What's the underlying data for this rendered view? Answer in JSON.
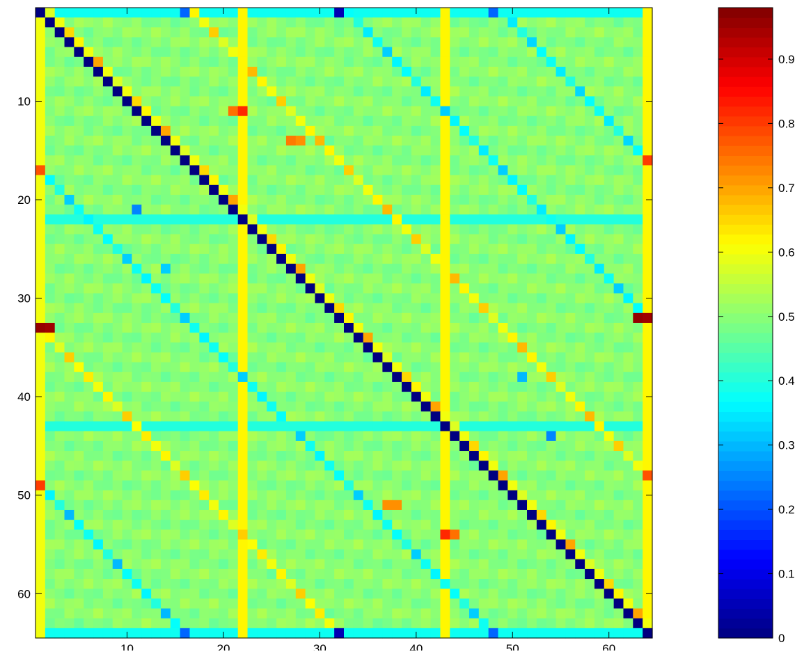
{
  "chart_data": {
    "type": "heatmap",
    "title": "",
    "xlabel": "",
    "ylabel": "",
    "rows": 64,
    "cols": 64,
    "xlim": [
      0.5,
      64.5
    ],
    "ylim": [
      0.5,
      64.5
    ],
    "x_ticks": [
      10,
      20,
      30,
      40,
      50,
      60
    ],
    "y_ticks": [
      10,
      20,
      30,
      40,
      50,
      60
    ],
    "colormap": "jet",
    "color_limits": [
      0,
      0.98
    ],
    "colorbar": {
      "ticks": [
        0,
        0.1,
        0.2,
        0.3,
        0.4,
        0.5,
        0.6,
        0.7,
        0.8,
        0.9
      ],
      "tick_labels": [
        "0",
        "0.1",
        "0.2",
        "0.3",
        "0.4",
        "0.5",
        "0.6",
        "0.7",
        "0.8",
        "0.9"
      ],
      "placement": "right"
    },
    "structure": {
      "baseline_value": 0.5,
      "diagonal_value": 0.0,
      "step_diagonals": [
        {
          "offset": 1,
          "values": [
            0.58,
            0.6,
            0.65,
            0.62,
            0.6,
            0.7,
            0.6
          ]
        },
        {
          "offset": 16,
          "values": [
            0.62,
            0.6,
            0.66,
            0.58,
            0.6,
            0.62,
            0.68
          ]
        },
        {
          "offset": -16,
          "values": [
            0.38,
            0.37,
            0.4,
            0.32,
            0.38,
            0.36
          ]
        },
        {
          "offset": 32,
          "values": [
            0.37,
            0.4,
            0.35,
            0.38,
            0.32,
            0.36
          ]
        },
        {
          "offset": -32,
          "values": [
            0.6,
            0.62,
            0.58,
            0.66,
            0.61,
            0.63
          ]
        },
        {
          "offset": 48,
          "values": [
            0.38,
            0.35,
            0.4,
            0.33,
            0.37
          ]
        },
        {
          "offset": -48,
          "values": [
            0.38,
            0.36,
            0.4,
            0.3,
            0.37
          ]
        }
      ],
      "light_rows": [
        {
          "index": 1,
          "value": 0.38
        },
        {
          "index": 22,
          "value": 0.4
        },
        {
          "index": 43,
          "value": 0.4
        },
        {
          "index": 64,
          "value": 0.38
        }
      ],
      "light_columns": [
        {
          "index": 1,
          "value": 0.6
        },
        {
          "index": 22,
          "value": 0.62
        },
        {
          "index": 43,
          "value": 0.62
        },
        {
          "index": 64,
          "value": 0.62
        }
      ],
      "highlights": [
        {
          "row": 33,
          "col": 1,
          "value": 0.96
        },
        {
          "row": 33,
          "col": 2,
          "value": 0.95
        },
        {
          "row": 32,
          "col": 63,
          "value": 0.96
        },
        {
          "row": 32,
          "col": 64,
          "value": 0.95
        },
        {
          "row": 11,
          "col": 22,
          "value": 0.82
        },
        {
          "row": 11,
          "col": 21,
          "value": 0.75
        },
        {
          "row": 54,
          "col": 43,
          "value": 0.82
        },
        {
          "row": 54,
          "col": 44,
          "value": 0.75
        },
        {
          "row": 17,
          "col": 1,
          "value": 0.78
        },
        {
          "row": 16,
          "col": 64,
          "value": 0.8
        },
        {
          "row": 49,
          "col": 1,
          "value": 0.8
        },
        {
          "row": 48,
          "col": 64,
          "value": 0.78
        },
        {
          "row": 14,
          "col": 27,
          "value": 0.74
        },
        {
          "row": 14,
          "col": 28,
          "value": 0.72
        },
        {
          "row": 51,
          "col": 37,
          "value": 0.72
        },
        {
          "row": 51,
          "col": 38,
          "value": 0.72
        },
        {
          "row": 21,
          "col": 11,
          "value": 0.25
        },
        {
          "row": 44,
          "col": 54,
          "value": 0.25
        },
        {
          "row": 27,
          "col": 14,
          "value": 0.32
        },
        {
          "row": 38,
          "col": 51,
          "value": 0.3
        },
        {
          "row": 1,
          "col": 16,
          "value": 0.22
        },
        {
          "row": 1,
          "col": 32,
          "value": 0.05
        },
        {
          "row": 1,
          "col": 48,
          "value": 0.22
        },
        {
          "row": 64,
          "col": 16,
          "value": 0.22
        },
        {
          "row": 64,
          "col": 32,
          "value": 0.05
        },
        {
          "row": 64,
          "col": 48,
          "value": 0.22
        }
      ]
    }
  }
}
